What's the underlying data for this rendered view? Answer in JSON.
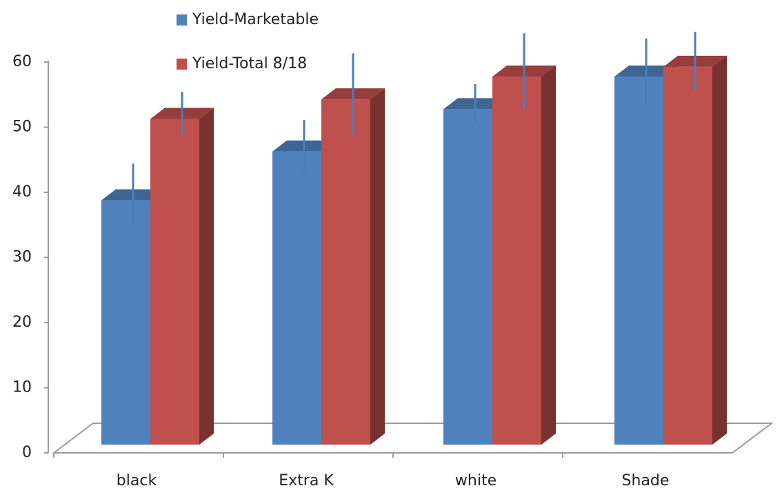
{
  "chart_data": {
    "type": "bar3d",
    "categories": [
      "black",
      "Extra K",
      "white",
      "Shade"
    ],
    "series": [
      {
        "name": "Yield-Marketable",
        "color": "#4f81bd",
        "values": [
          37.5,
          45,
          51.5,
          56.5
        ],
        "errors": [
          4.8,
          4,
          3,
          5
        ]
      },
      {
        "name": "Yield-Total 8/18",
        "color": "#c0504d",
        "values": [
          50,
          53,
          56.5,
          58
        ],
        "errors": [
          3.3,
          6.2,
          5.8,
          4.5
        ]
      }
    ],
    "ylim": [
      0,
      60
    ],
    "yticks": [
      0,
      10,
      20,
      30,
      40,
      50,
      60
    ],
    "error_color": "#4a7ebb"
  }
}
